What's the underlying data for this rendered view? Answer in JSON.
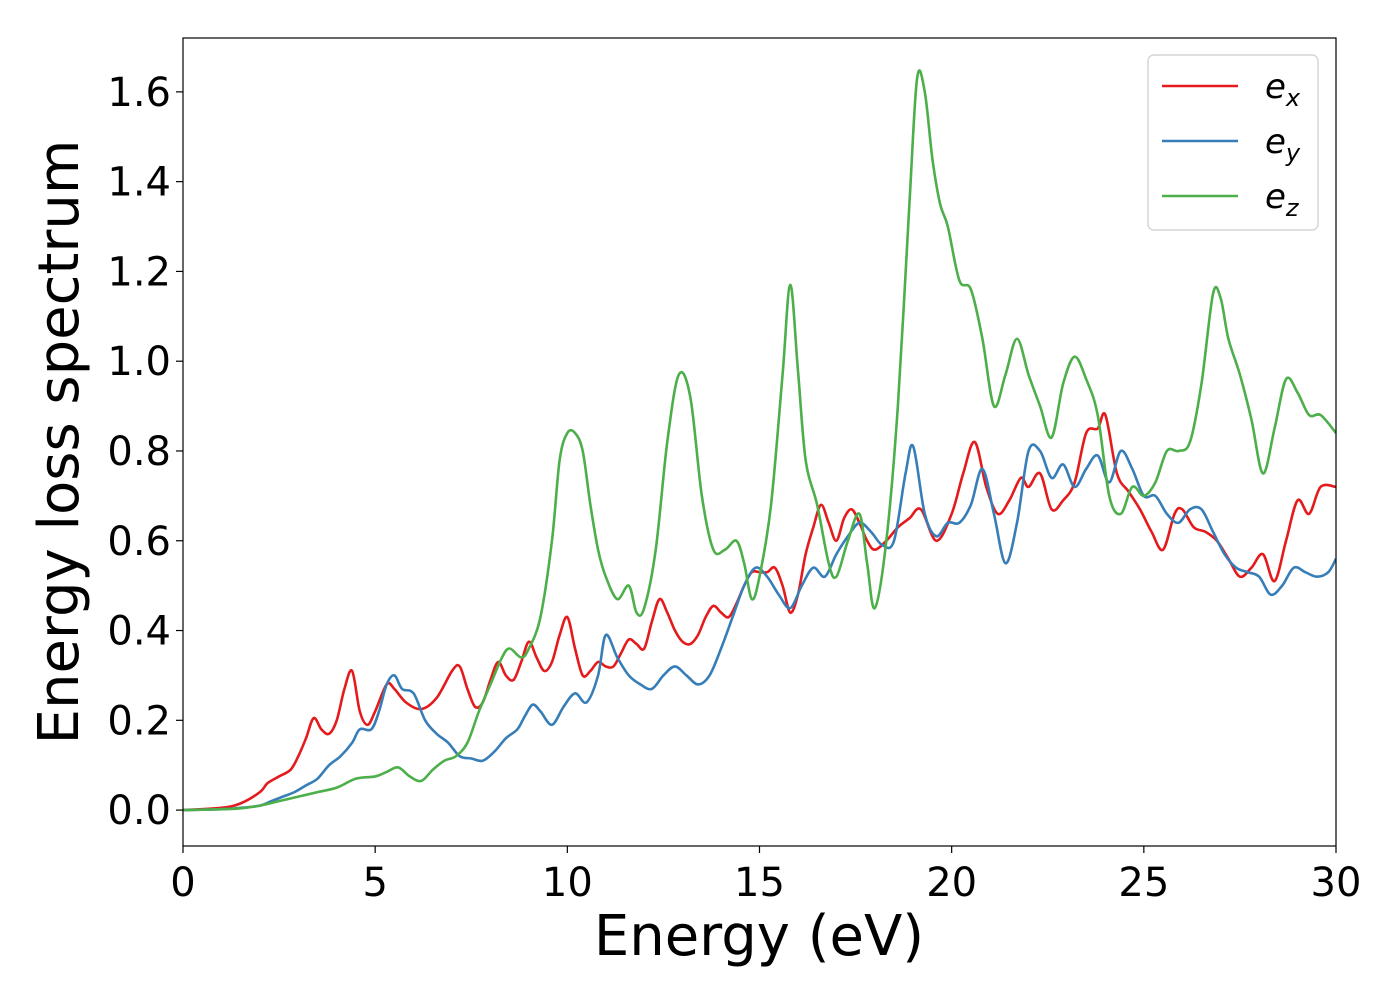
{
  "chart_data": {
    "type": "line",
    "title": "",
    "xlabel": "Energy (eV)",
    "ylabel": "Energy loss spectrum",
    "xlim": [
      0,
      30
    ],
    "ylim": [
      -0.08,
      1.72
    ],
    "xticks": [
      0,
      5,
      10,
      15,
      20,
      25,
      30
    ],
    "xtick_labels": [
      "0",
      "5",
      "10",
      "15",
      "20",
      "25",
      "30"
    ],
    "yticks": [
      0.0,
      0.2,
      0.4,
      0.6,
      0.8,
      1.0,
      1.2,
      1.4,
      1.6
    ],
    "ytick_labels": [
      "0.0",
      "0.2",
      "0.4",
      "0.6",
      "0.8",
      "1.0",
      "1.2",
      "1.4",
      "1.6"
    ],
    "grid": false,
    "legend_position": "top-right",
    "series": [
      {
        "name": "e",
        "subscript": "x",
        "color": "#e41a1c",
        "x": [
          0,
          1,
          1.5,
          2,
          2.2,
          2.5,
          2.8,
          3,
          3.2,
          3.4,
          3.6,
          3.8,
          4,
          4.2,
          4.4,
          4.6,
          4.8,
          5,
          5.3,
          5.5,
          5.8,
          6.2,
          6.6,
          7,
          7.2,
          7.4,
          7.6,
          7.8,
          8,
          8.2,
          8.4,
          8.6,
          8.8,
          9,
          9.2,
          9.4,
          9.6,
          9.8,
          10,
          10.2,
          10.4,
          10.6,
          10.8,
          11,
          11.2,
          11.4,
          11.6,
          11.8,
          12,
          12.2,
          12.4,
          12.6,
          12.8,
          13,
          13.2,
          13.4,
          13.6,
          13.8,
          14,
          14.2,
          14.4,
          14.6,
          14.8,
          15,
          15.2,
          15.4,
          15.6,
          15.8,
          16,
          16.2,
          16.4,
          16.6,
          16.8,
          17,
          17.2,
          17.4,
          17.6,
          17.8,
          18,
          18.3,
          18.6,
          18.9,
          19.2,
          19.6,
          20,
          20.3,
          20.6,
          20.9,
          21.2,
          21.5,
          21.8,
          22,
          22.3,
          22.6,
          22.9,
          23.2,
          23.5,
          23.8,
          24,
          24.3,
          24.6,
          24.9,
          25.2,
          25.5,
          25.8,
          26,
          26.3,
          26.6,
          26.9,
          27.2,
          27.5,
          27.8,
          28.1,
          28.4,
          28.7,
          29,
          29.3,
          29.6,
          30
        ],
        "y": [
          0.0,
          0.005,
          0.015,
          0.04,
          0.06,
          0.075,
          0.09,
          0.12,
          0.16,
          0.205,
          0.18,
          0.17,
          0.2,
          0.27,
          0.31,
          0.22,
          0.19,
          0.22,
          0.28,
          0.27,
          0.24,
          0.225,
          0.25,
          0.31,
          0.32,
          0.27,
          0.23,
          0.24,
          0.29,
          0.33,
          0.3,
          0.29,
          0.33,
          0.375,
          0.34,
          0.31,
          0.33,
          0.39,
          0.43,
          0.36,
          0.3,
          0.31,
          0.33,
          0.32,
          0.32,
          0.35,
          0.38,
          0.37,
          0.36,
          0.42,
          0.47,
          0.44,
          0.4,
          0.375,
          0.37,
          0.39,
          0.43,
          0.455,
          0.44,
          0.43,
          0.46,
          0.5,
          0.53,
          0.53,
          0.53,
          0.54,
          0.5,
          0.44,
          0.48,
          0.57,
          0.63,
          0.68,
          0.64,
          0.6,
          0.65,
          0.67,
          0.64,
          0.6,
          0.58,
          0.6,
          0.63,
          0.65,
          0.67,
          0.6,
          0.66,
          0.75,
          0.82,
          0.72,
          0.66,
          0.69,
          0.74,
          0.72,
          0.75,
          0.67,
          0.69,
          0.73,
          0.84,
          0.85,
          0.88,
          0.75,
          0.71,
          0.67,
          0.62,
          0.58,
          0.66,
          0.67,
          0.63,
          0.62,
          0.6,
          0.56,
          0.52,
          0.54,
          0.57,
          0.51,
          0.6,
          0.69,
          0.66,
          0.72,
          0.72
        ]
      },
      {
        "name": "e",
        "subscript": "y",
        "color": "#377eb8",
        "x": [
          0,
          1,
          1.5,
          2,
          2.3,
          2.6,
          2.9,
          3.2,
          3.5,
          3.8,
          4.1,
          4.4,
          4.6,
          4.9,
          5.1,
          5.3,
          5.5,
          5.7,
          6,
          6.3,
          6.6,
          6.9,
          7.2,
          7.5,
          7.8,
          8.1,
          8.4,
          8.7,
          8.9,
          9.1,
          9.3,
          9.6,
          9.9,
          10.2,
          10.5,
          10.8,
          11,
          11.3,
          11.6,
          11.9,
          12.2,
          12.5,
          12.8,
          13.1,
          13.4,
          13.7,
          14,
          14.3,
          14.6,
          14.9,
          15.2,
          15.5,
          15.8,
          16.1,
          16.4,
          16.7,
          17,
          17.3,
          17.6,
          17.9,
          18.2,
          18.5,
          18.8,
          19,
          19.3,
          19.6,
          19.9,
          20.2,
          20.5,
          20.8,
          21.1,
          21.4,
          21.7,
          22,
          22.3,
          22.6,
          22.9,
          23.2,
          23.5,
          23.8,
          24.1,
          24.4,
          24.7,
          25,
          25.3,
          25.6,
          25.9,
          26.2,
          26.5,
          26.8,
          27.1,
          27.4,
          27.7,
          28,
          28.3,
          28.6,
          28.9,
          29.2,
          29.5,
          29.8,
          30
        ],
        "y": [
          0.0,
          0.002,
          0.005,
          0.01,
          0.02,
          0.03,
          0.04,
          0.055,
          0.07,
          0.1,
          0.12,
          0.15,
          0.18,
          0.18,
          0.22,
          0.28,
          0.3,
          0.27,
          0.26,
          0.2,
          0.17,
          0.15,
          0.12,
          0.115,
          0.11,
          0.13,
          0.16,
          0.18,
          0.21,
          0.235,
          0.22,
          0.19,
          0.23,
          0.26,
          0.24,
          0.3,
          0.39,
          0.34,
          0.3,
          0.28,
          0.27,
          0.3,
          0.32,
          0.3,
          0.28,
          0.3,
          0.36,
          0.43,
          0.5,
          0.54,
          0.52,
          0.48,
          0.45,
          0.5,
          0.54,
          0.52,
          0.57,
          0.61,
          0.64,
          0.62,
          0.59,
          0.6,
          0.75,
          0.81,
          0.66,
          0.61,
          0.64,
          0.64,
          0.68,
          0.76,
          0.66,
          0.55,
          0.64,
          0.8,
          0.8,
          0.74,
          0.77,
          0.72,
          0.76,
          0.79,
          0.73,
          0.8,
          0.76,
          0.7,
          0.7,
          0.66,
          0.64,
          0.67,
          0.67,
          0.62,
          0.57,
          0.54,
          0.53,
          0.52,
          0.48,
          0.5,
          0.54,
          0.53,
          0.52,
          0.53,
          0.56
        ]
      },
      {
        "name": "e",
        "subscript": "z",
        "color": "#4daf4a",
        "x": [
          0,
          1,
          1.5,
          2,
          2.5,
          3,
          3.5,
          4,
          4.5,
          5,
          5.3,
          5.6,
          5.9,
          6.2,
          6.5,
          6.8,
          7.1,
          7.4,
          7.7,
          8,
          8.3,
          8.5,
          8.8,
          9,
          9.3,
          9.6,
          9.8,
          10,
          10.2,
          10.4,
          10.6,
          10.8,
          11,
          11.3,
          11.6,
          11.8,
          12,
          12.3,
          12.6,
          12.9,
          13.2,
          13.5,
          13.8,
          14.1,
          14.4,
          14.6,
          14.8,
          15,
          15.3,
          15.6,
          15.8,
          16,
          16.2,
          16.5,
          16.8,
          17,
          17.3,
          17.6,
          17.8,
          18,
          18.3,
          18.6,
          18.9,
          19.1,
          19.3,
          19.5,
          19.7,
          19.9,
          20.2,
          20.5,
          20.8,
          21.1,
          21.4,
          21.7,
          22,
          22.3,
          22.6,
          22.9,
          23.2,
          23.5,
          23.8,
          24.1,
          24.4,
          24.7,
          25,
          25.3,
          25.6,
          25.9,
          26.2,
          26.5,
          26.8,
          27,
          27.2,
          27.5,
          27.8,
          28.1,
          28.4,
          28.7,
          29,
          29.3,
          29.6,
          30
        ],
        "y": [
          0.0,
          0.002,
          0.004,
          0.01,
          0.02,
          0.03,
          0.04,
          0.05,
          0.07,
          0.075,
          0.085,
          0.095,
          0.075,
          0.065,
          0.09,
          0.11,
          0.12,
          0.15,
          0.22,
          0.28,
          0.34,
          0.36,
          0.34,
          0.36,
          0.43,
          0.6,
          0.78,
          0.84,
          0.84,
          0.8,
          0.68,
          0.58,
          0.52,
          0.47,
          0.5,
          0.44,
          0.45,
          0.58,
          0.82,
          0.97,
          0.92,
          0.7,
          0.58,
          0.58,
          0.6,
          0.55,
          0.47,
          0.52,
          0.68,
          0.97,
          1.17,
          0.98,
          0.78,
          0.68,
          0.55,
          0.52,
          0.6,
          0.66,
          0.55,
          0.45,
          0.6,
          0.9,
          1.35,
          1.63,
          1.6,
          1.45,
          1.35,
          1.3,
          1.18,
          1.16,
          1.05,
          0.9,
          0.97,
          1.05,
          0.97,
          0.9,
          0.83,
          0.95,
          1.01,
          0.96,
          0.88,
          0.7,
          0.66,
          0.72,
          0.7,
          0.73,
          0.8,
          0.8,
          0.82,
          0.95,
          1.15,
          1.14,
          1.05,
          0.97,
          0.87,
          0.75,
          0.85,
          0.96,
          0.93,
          0.88,
          0.88,
          0.84
        ]
      }
    ]
  }
}
